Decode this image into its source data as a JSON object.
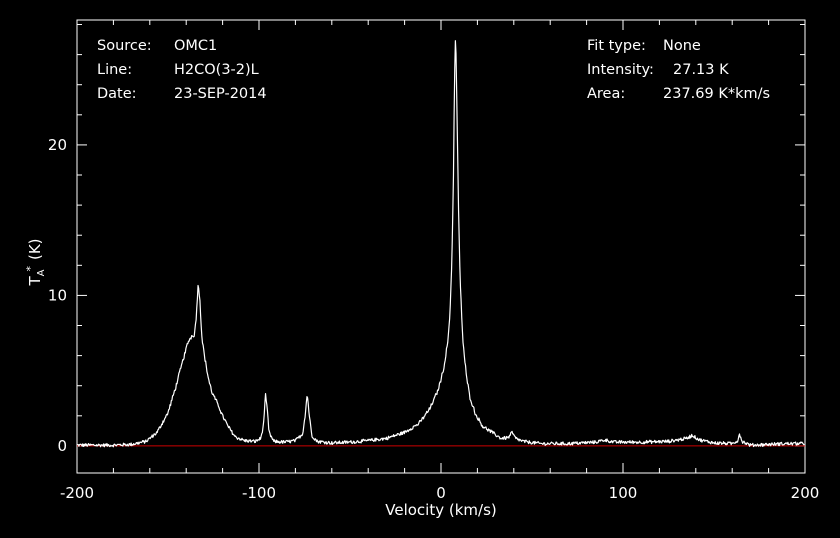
{
  "header": {
    "left": [
      {
        "label": "Source:",
        "value": "OMC1"
      },
      {
        "label": "Line:",
        "value": "H2CO(3-2)L"
      },
      {
        "label": "Date:",
        "value": "23-SEP-2014"
      }
    ],
    "right": [
      {
        "label": "Fit type:",
        "value": "None"
      },
      {
        "label": "Intensity:",
        "value": "27.13 K"
      },
      {
        "label": "Area:",
        "value": "237.69 K*km/s"
      }
    ]
  },
  "colors": {
    "background": "#000000",
    "foreground": "#ffffff",
    "spectrum": "#ffffff",
    "baseline": "#cc0000"
  },
  "chart_data": {
    "type": "line",
    "xlabel": "Velocity (km/s)",
    "ylabel_main": "T",
    "ylabel_sub": "A",
    "ylabel_sup": "*",
    "ylabel_unit": "(K)",
    "xlim": [
      -200,
      200
    ],
    "ylim": [
      -1.8,
      28.3
    ],
    "x_ticks_major": [
      -200,
      -100,
      0,
      100,
      200
    ],
    "x_tick_labels": [
      "-200",
      "-100",
      "0",
      "100",
      "200"
    ],
    "x_ticks_minor_step": 20,
    "y_ticks_major": [
      0,
      10,
      20
    ],
    "y_tick_labels": [
      "0",
      "10",
      "20"
    ],
    "y_ticks_minor_step": 2,
    "grid": false,
    "baseline": 0,
    "series": [
      {
        "points": [
          [
            -200,
            0.05
          ],
          [
            -180,
            0.05
          ],
          [
            -170,
            0.1
          ],
          [
            -162,
            0.3
          ],
          [
            -156,
            0.9
          ],
          [
            -150,
            2.2
          ],
          [
            -146,
            3.8
          ],
          [
            -142,
            5.6
          ],
          [
            -139,
            6.9
          ],
          [
            -137,
            7.3
          ],
          [
            -135.5,
            7.4
          ],
          [
            -134.5,
            8.5
          ],
          [
            -133.5,
            10.7
          ],
          [
            -132.5,
            9.8
          ],
          [
            -131.5,
            7.4
          ],
          [
            -130,
            6.0
          ],
          [
            -128,
            4.6
          ],
          [
            -126,
            3.6
          ],
          [
            -124,
            3.1
          ],
          [
            -122,
            2.6
          ],
          [
            -120,
            2.0
          ],
          [
            -117,
            1.3
          ],
          [
            -113,
            0.6
          ],
          [
            -108,
            0.35
          ],
          [
            -102,
            0.3
          ],
          [
            -99,
            0.5
          ],
          [
            -97.5,
            1.4
          ],
          [
            -96.5,
            3.4
          ],
          [
            -95.5,
            2.5
          ],
          [
            -94.5,
            0.9
          ],
          [
            -92,
            0.3
          ],
          [
            -86,
            0.25
          ],
          [
            -80,
            0.35
          ],
          [
            -76,
            0.8
          ],
          [
            -74.5,
            2.2
          ],
          [
            -73.5,
            3.5
          ],
          [
            -72.5,
            2.2
          ],
          [
            -71,
            0.7
          ],
          [
            -68,
            0.3
          ],
          [
            -60,
            0.2
          ],
          [
            -50,
            0.25
          ],
          [
            -40,
            0.35
          ],
          [
            -30,
            0.5
          ],
          [
            -20,
            0.9
          ],
          [
            -12,
            1.5
          ],
          [
            -6,
            2.5
          ],
          [
            -2,
            3.6
          ],
          [
            0,
            4.4
          ],
          [
            2,
            5.5
          ],
          [
            4,
            7.2
          ],
          [
            5,
            9.0
          ],
          [
            6,
            12.5
          ],
          [
            6.8,
            17.5
          ],
          [
            7.3,
            23.0
          ],
          [
            7.8,
            27.1
          ],
          [
            8.3,
            26.0
          ],
          [
            8.8,
            22.0
          ],
          [
            9.6,
            16.0
          ],
          [
            10.5,
            11.0
          ],
          [
            12,
            7.0
          ],
          [
            14,
            4.6
          ],
          [
            16,
            3.2
          ],
          [
            19,
            2.1
          ],
          [
            23,
            1.3
          ],
          [
            28,
            0.9
          ],
          [
            33,
            0.5
          ],
          [
            37,
            0.55
          ],
          [
            39,
            0.9
          ],
          [
            41,
            0.5
          ],
          [
            45,
            0.3
          ],
          [
            55,
            0.15
          ],
          [
            70,
            0.15
          ],
          [
            85,
            0.25
          ],
          [
            90,
            0.4
          ],
          [
            95,
            0.25
          ],
          [
            110,
            0.25
          ],
          [
            125,
            0.3
          ],
          [
            135,
            0.5
          ],
          [
            138,
            0.7
          ],
          [
            142,
            0.4
          ],
          [
            150,
            0.2
          ],
          [
            160,
            0.15
          ],
          [
            163,
            0.35
          ],
          [
            164,
            0.8
          ],
          [
            165.5,
            0.3
          ],
          [
            170,
            0.05
          ],
          [
            180,
            0.1
          ],
          [
            190,
            0.15
          ],
          [
            200,
            0.15
          ]
        ]
      }
    ]
  }
}
